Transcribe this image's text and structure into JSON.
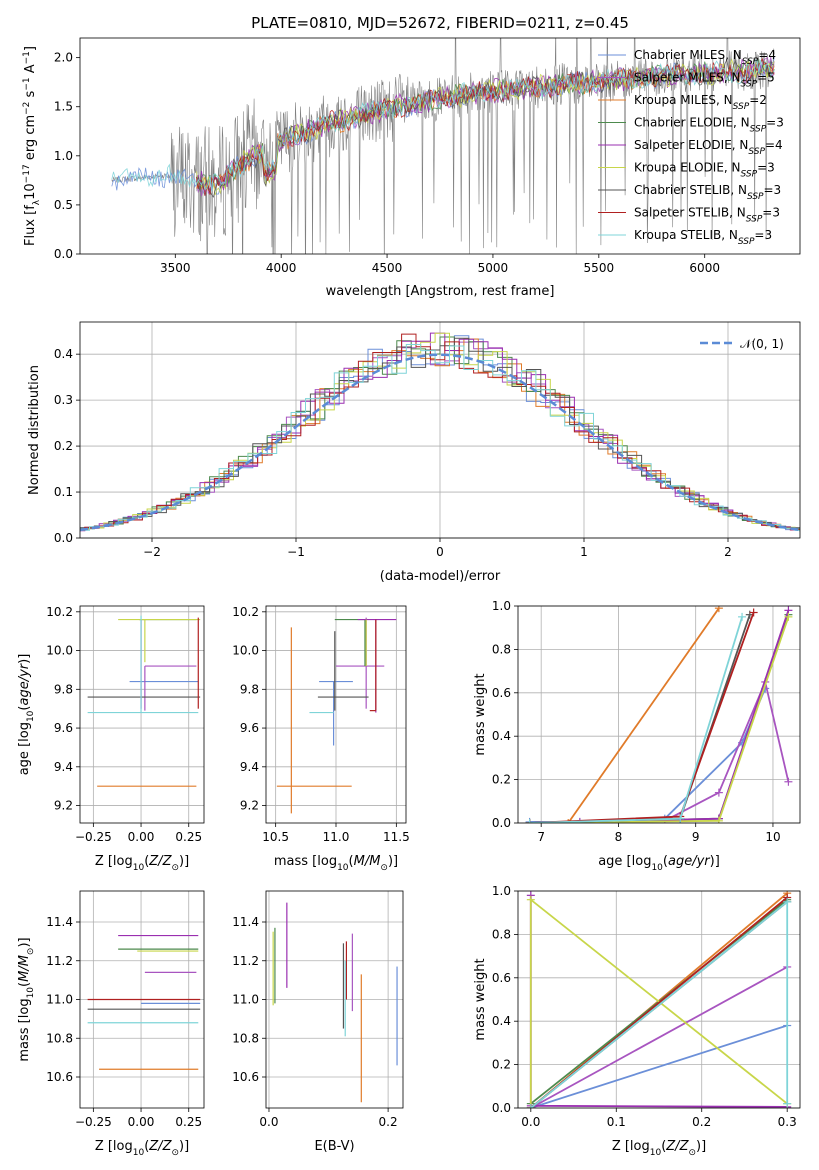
{
  "title": "PLATE=0810, MJD=52672, FIBERID=0211, z=0.45",
  "colors": {
    "chabrier_miles": "#6b8fd8",
    "salpeter_miles": "#a855c0",
    "kroupa_miles": "#e07b2a",
    "chabrier_elodie": "#4d8a4d",
    "salpeter_elodie": "#9a2fb0",
    "kroupa_elodie": "#c8d64a",
    "chabrier_stelib": "#555555",
    "salpeter_stelib": "#b02020",
    "kroupa_stelib": "#7fd4d8",
    "data": "#808080"
  },
  "chart_data": [
    {
      "id": "spectrum",
      "type": "line",
      "title": "PLATE=0810, MJD=52672, FIBERID=0211, z=0.45",
      "xlabel": "wavelength [Angstrom, rest frame]",
      "ylabel": "Flux [f_λ 10^-17 erg cm^-2 s^-1 A^-1]",
      "xlim": [
        3050,
        6450
      ],
      "ylim": [
        0,
        2.2
      ],
      "xticks": [
        3500,
        4000,
        4500,
        5000,
        5500,
        6000
      ],
      "yticks": [
        0.0,
        0.5,
        1.0,
        1.5,
        2.0
      ],
      "legend": "top-right",
      "continuum": {
        "x": [
          3200,
          3450,
          3600,
          3700,
          3800,
          4000,
          4200,
          4500,
          4800,
          5000,
          5300,
          5600,
          6000,
          6300
        ],
        "y": [
          0.75,
          0.8,
          0.72,
          0.7,
          0.9,
          1.15,
          1.32,
          1.48,
          1.6,
          1.66,
          1.72,
          1.78,
          1.84,
          1.88
        ]
      },
      "series": [
        {
          "name": "Chabrier MILES, N_SSP=4",
          "key": "chabrier_miles"
        },
        {
          "name": "Salpeter MILES, N_SSP=5",
          "key": "salpeter_miles"
        },
        {
          "name": "Kroupa MILES, N_SSP=2",
          "key": "kroupa_miles"
        },
        {
          "name": "Chabrier ELODIE, N_SSP=3",
          "key": "chabrier_elodie"
        },
        {
          "name": "Salpeter ELODIE, N_SSP=4",
          "key": "salpeter_elodie"
        },
        {
          "name": "Kroupa ELODIE, N_SSP=3",
          "key": "kroupa_elodie"
        },
        {
          "name": "Chabrier STELIB, N_SSP=3",
          "key": "chabrier_stelib"
        },
        {
          "name": "Salpeter STELIB, N_SSP=3",
          "key": "salpeter_stelib"
        },
        {
          "name": "Kroupa STELIB, N_SSP=3",
          "key": "kroupa_stelib"
        }
      ]
    },
    {
      "id": "residuals",
      "type": "histogram",
      "xlabel": "(data-model)/error",
      "ylabel": "Normed distribution",
      "xlim": [
        -2.5,
        2.5
      ],
      "ylim": [
        0,
        0.47
      ],
      "xticks": [
        -2,
        -1,
        0,
        1,
        2
      ],
      "yticks": [
        0.0,
        0.1,
        0.2,
        0.3,
        0.4
      ],
      "legend": "top-right",
      "reference": {
        "name": "𝒩(0, 1)",
        "mean": 0,
        "sigma": 1
      }
    },
    {
      "id": "age_vs_Z",
      "type": "errorbar",
      "xlabel": "Z [log10(Z/Z⊙)]",
      "ylabel": "age [log10(age/yr)]",
      "xlim": [
        -0.32,
        0.33
      ],
      "ylim": [
        9.11,
        10.23
      ],
      "xticks": [
        -0.25,
        0.0,
        0.25
      ],
      "yticks": [
        9.2,
        9.4,
        9.6,
        9.8,
        10.0,
        10.2
      ],
      "points": [
        {
          "key": "chabrier_miles",
          "x": 0.12,
          "y": 9.84,
          "xerr": [
            0.18,
            0.18
          ],
          "yerr": [
            0.0,
            0.0
          ]
        },
        {
          "key": "salpeter_miles",
          "x": 0.02,
          "y": 9.92,
          "xerr": [
            0.0,
            0.27
          ],
          "yerr": [
            0.23,
            0.0
          ]
        },
        {
          "key": "kroupa_miles",
          "x": 0.02,
          "y": 9.3,
          "xerr": [
            0.25,
            0.27
          ],
          "yerr": [
            0.0,
            0.0
          ]
        },
        {
          "key": "chabrier_elodie",
          "x": 0.29,
          "y": 10.16,
          "xerr": [
            0.3,
            0.0
          ],
          "yerr": [
            0.0,
            0.0
          ]
        },
        {
          "key": "salpeter_elodie",
          "x": 0.0,
          "y": 9.7,
          "xerr": [
            0.0,
            0.0
          ],
          "yerr": [
            0.0,
            0.46
          ]
        },
        {
          "key": "kroupa_elodie",
          "x": 0.02,
          "y": 10.16,
          "xerr": [
            0.14,
            0.29
          ],
          "yerr": [
            0.22,
            0.0
          ]
        },
        {
          "key": "chabrier_stelib",
          "x": 0.0,
          "y": 9.76,
          "xerr": [
            0.28,
            0.31
          ],
          "yerr": [
            0.0,
            0.0
          ]
        },
        {
          "key": "salpeter_stelib",
          "x": 0.3,
          "y": 9.7,
          "xerr": [
            0.0,
            0.0
          ],
          "yerr": [
            0.0,
            0.47
          ]
        },
        {
          "key": "kroupa_stelib",
          "x": 0.0,
          "y": 9.68,
          "xerr": [
            0.28,
            0.3
          ],
          "yerr": [
            0.0,
            0.5
          ]
        }
      ]
    },
    {
      "id": "age_vs_mass",
      "type": "errorbar",
      "xlabel": "mass [log10(M/M⊙)]",
      "ylabel": "",
      "xlim": [
        10.42,
        11.58
      ],
      "ylim": [
        9.11,
        10.23
      ],
      "xticks": [
        10.5,
        11.0,
        11.5
      ],
      "yticks": [
        9.2,
        9.4,
        9.6,
        9.8,
        10.0,
        10.2
      ],
      "points": [
        {
          "key": "chabrier_miles",
          "x": 10.98,
          "y": 9.84,
          "xerr": [
            0.12,
            0.16
          ],
          "yerr": [
            0.33,
            0.0
          ]
        },
        {
          "key": "salpeter_miles",
          "x": 11.25,
          "y": 9.92,
          "xerr": [
            0.25,
            0.15
          ],
          "yerr": [
            0.22,
            0.25
          ]
        },
        {
          "key": "kroupa_miles",
          "x": 10.63,
          "y": 9.3,
          "xerr": [
            0.12,
            0.5
          ],
          "yerr": [
            0.14,
            0.82
          ]
        },
        {
          "key": "chabrier_elodie",
          "x": 11.24,
          "y": 10.16,
          "xerr": [
            0.25,
            0.0
          ],
          "yerr": [
            0.24,
            0.0
          ]
        },
        {
          "key": "salpeter_elodie",
          "x": 11.33,
          "y": 10.16,
          "xerr": [
            0.15,
            0.17
          ],
          "yerr": [
            0.48,
            0.0
          ]
        },
        {
          "key": "kroupa_elodie",
          "x": 11.25,
          "y": 10.16,
          "xerr": [
            0.0,
            0.0
          ],
          "yerr": [
            0.24,
            0.0
          ]
        },
        {
          "key": "chabrier_stelib",
          "x": 10.99,
          "y": 9.76,
          "xerr": [
            0.14,
            0.28
          ],
          "yerr": [
            0.07,
            0.34
          ]
        },
        {
          "key": "salpeter_stelib",
          "x": 11.33,
          "y": 9.69,
          "xerr": [
            0.05,
            0.0
          ],
          "yerr": [
            0.0,
            0.47
          ]
        },
        {
          "key": "kroupa_stelib",
          "x": 10.88,
          "y": 9.68,
          "xerr": [
            0.1,
            0.1
          ],
          "yerr": [
            0.0,
            0.0
          ]
        }
      ]
    },
    {
      "id": "weight_vs_age",
      "type": "line",
      "xlabel": "age [log10(age/yr)]",
      "ylabel": "mass weight",
      "xlim": [
        6.7,
        10.35
      ],
      "ylim": [
        0,
        1.0
      ],
      "xticks": [
        7,
        8,
        9,
        10
      ],
      "yticks": [
        0.0,
        0.2,
        0.4,
        0.6,
        0.8,
        1.0
      ],
      "series": [
        {
          "key": "chabrier_miles",
          "x": [
            6.85,
            7.5,
            8.6,
            9.6,
            9.9
          ],
          "y": [
            0.005,
            0.005,
            0.02,
            0.37,
            0.62
          ]
        },
        {
          "key": "salpeter_miles",
          "x": [
            7.5,
            8.6,
            9.3,
            9.9,
            10.2
          ],
          "y": [
            0.005,
            0.01,
            0.14,
            0.65,
            0.19
          ]
        },
        {
          "key": "kroupa_miles",
          "x": [
            6.85,
            7.35,
            9.3
          ],
          "y": [
            0.0,
            0.0,
            0.99
          ]
        },
        {
          "key": "chabrier_elodie",
          "x": [
            6.85,
            9.3,
            10.2
          ],
          "y": [
            0.0,
            0.02,
            0.96
          ]
        },
        {
          "key": "salpeter_elodie",
          "x": [
            6.85,
            9.3,
            10.2
          ],
          "y": [
            0.0,
            0.02,
            0.98
          ]
        },
        {
          "key": "kroupa_elodie",
          "x": [
            6.85,
            9.3,
            10.2
          ],
          "y": [
            0.0,
            0.01,
            0.95
          ]
        },
        {
          "key": "chabrier_stelib",
          "x": [
            6.85,
            8.8,
            9.7
          ],
          "y": [
            0.0,
            0.02,
            0.96
          ]
        },
        {
          "key": "salpeter_stelib",
          "x": [
            6.85,
            8.8,
            9.75
          ],
          "y": [
            0.0,
            0.03,
            0.97
          ]
        },
        {
          "key": "kroupa_stelib",
          "x": [
            6.85,
            8.8,
            9.6
          ],
          "y": [
            0.0,
            0.02,
            0.95
          ]
        }
      ]
    },
    {
      "id": "mass_vs_Z",
      "type": "errorbar",
      "xlabel": "Z [log10(Z/Z⊙)]",
      "ylabel": "mass [log10(M/M⊙)]",
      "xlim": [
        -0.32,
        0.33
      ],
      "ylim": [
        10.44,
        11.56
      ],
      "xticks": [
        -0.25,
        0.0,
        0.25
      ],
      "yticks": [
        10.6,
        10.8,
        11.0,
        11.2,
        11.4
      ],
      "points": [
        {
          "key": "chabrier_miles",
          "x": 0.12,
          "y": 10.98,
          "xerr": [
            0.12,
            0.19
          ],
          "yerr": [
            0.0,
            0.0
          ]
        },
        {
          "key": "salpeter_miles",
          "x": 0.15,
          "y": 11.14,
          "xerr": [
            0.13,
            0.14
          ],
          "yerr": [
            0.0,
            0.0
          ]
        },
        {
          "key": "kroupa_miles",
          "x": 0.03,
          "y": 10.64,
          "xerr": [
            0.25,
            0.27
          ],
          "yerr": [
            0.0,
            0.0
          ]
        },
        {
          "key": "chabrier_elodie",
          "x": 0.1,
          "y": 11.26,
          "xerr": [
            0.22,
            0.2
          ],
          "yerr": [
            0.0,
            0.0
          ]
        },
        {
          "key": "salpeter_elodie",
          "x": 0.14,
          "y": 11.33,
          "xerr": [
            0.26,
            0.16
          ],
          "yerr": [
            0.0,
            0.0
          ]
        },
        {
          "key": "kroupa_elodie",
          "x": 0.14,
          "y": 11.25,
          "xerr": [
            0.16,
            0.16
          ],
          "yerr": [
            0.0,
            0.0
          ]
        },
        {
          "key": "chabrier_stelib",
          "x": 0.0,
          "y": 10.95,
          "xerr": [
            0.28,
            0.31
          ],
          "yerr": [
            0.0,
            0.0
          ]
        },
        {
          "key": "salpeter_stelib",
          "x": 0.0,
          "y": 11.0,
          "xerr": [
            0.28,
            0.31
          ],
          "yerr": [
            0.0,
            0.0
          ]
        },
        {
          "key": "kroupa_stelib",
          "x": 0.0,
          "y": 10.88,
          "xerr": [
            0.28,
            0.3
          ],
          "yerr": [
            0.0,
            0.0
          ]
        }
      ]
    },
    {
      "id": "mass_vs_ebv",
      "type": "errorbar",
      "xlabel": "E(B-V)",
      "ylabel": "",
      "xlim": [
        -0.005,
        0.225
      ],
      "ylim": [
        10.44,
        11.56
      ],
      "xticks": [
        0.0,
        0.2
      ],
      "yticks": [
        10.6,
        10.8,
        11.0,
        11.2,
        11.4
      ],
      "points": [
        {
          "key": "chabrier_miles",
          "x": 0.215,
          "y": 10.98,
          "xerr": [
            0.0,
            0.0
          ],
          "yerr": [
            0.32,
            0.19
          ]
        },
        {
          "key": "salpeter_miles",
          "x": 0.14,
          "y": 11.14,
          "xerr": [
            0.0,
            0.0
          ],
          "yerr": [
            0.2,
            0.2
          ]
        },
        {
          "key": "kroupa_miles",
          "x": 0.155,
          "y": 10.64,
          "xerr": [
            0.0,
            0.0
          ],
          "yerr": [
            0.17,
            0.49
          ]
        },
        {
          "key": "chabrier_elodie",
          "x": 0.01,
          "y": 11.18,
          "xerr": [
            0.0,
            0.0
          ],
          "yerr": [
            0.2,
            0.19
          ]
        },
        {
          "key": "salpeter_elodie",
          "x": 0.03,
          "y": 11.33,
          "xerr": [
            0.0,
            0.0
          ],
          "yerr": [
            0.27,
            0.17
          ]
        },
        {
          "key": "kroupa_elodie",
          "x": 0.007,
          "y": 11.15,
          "xerr": [
            0.0,
            0.0
          ],
          "yerr": [
            0.18,
            0.2
          ]
        },
        {
          "key": "chabrier_stelib",
          "x": 0.125,
          "y": 11.1,
          "xerr": [
            0.0,
            0.0
          ],
          "yerr": [
            0.25,
            0.19
          ]
        },
        {
          "key": "salpeter_stelib",
          "x": 0.13,
          "y": 11.2,
          "xerr": [
            0.0,
            0.0
          ],
          "yerr": [
            0.2,
            0.1
          ]
        },
        {
          "key": "kroupa_stelib",
          "x": 0.128,
          "y": 11.0,
          "xerr": [
            0.0,
            0.0
          ],
          "yerr": [
            0.19,
            0.2
          ]
        }
      ]
    },
    {
      "id": "weight_vs_Z",
      "type": "line",
      "xlabel": "Z [log10(Z/Z⊙)]",
      "ylabel": "mass weight",
      "xlim": [
        -0.015,
        0.315
      ],
      "ylim": [
        0,
        1.0
      ],
      "xticks": [
        0.0,
        0.1,
        0.2,
        0.3
      ],
      "yticks": [
        0.0,
        0.2,
        0.4,
        0.6,
        0.8,
        1.0
      ],
      "series": [
        {
          "key": "chabrier_miles",
          "x": [
            0.0,
            0.3
          ],
          "y": [
            0.0,
            0.38
          ]
        },
        {
          "key": "salpeter_miles",
          "x": [
            0.0,
            0.3
          ],
          "y": [
            0.0,
            0.65
          ]
        },
        {
          "key": "kroupa_miles",
          "x": [
            0.0,
            0.3
          ],
          "y": [
            0.0,
            0.99
          ]
        },
        {
          "key": "chabrier_elodie",
          "x": [
            0.0,
            0.3
          ],
          "y": [
            0.02,
            0.96
          ]
        },
        {
          "key": "salpeter_elodie",
          "x": [
            0.0,
            0.0,
            0.3
          ],
          "y": [
            0.98,
            0.01,
            0.005
          ]
        },
        {
          "key": "kroupa_elodie",
          "x": [
            0.0,
            0.0,
            0.3
          ],
          "y": [
            0.0,
            0.96,
            0.02
          ]
        },
        {
          "key": "chabrier_stelib",
          "x": [
            0.0,
            0.3
          ],
          "y": [
            0.0,
            0.95
          ]
        },
        {
          "key": "salpeter_stelib",
          "x": [
            0.0,
            0.3
          ],
          "y": [
            0.0,
            0.97
          ]
        },
        {
          "key": "kroupa_stelib",
          "x": [
            0.0,
            0.3,
            0.3
          ],
          "y": [
            0.0,
            0.95,
            0.02
          ]
        }
      ]
    }
  ]
}
